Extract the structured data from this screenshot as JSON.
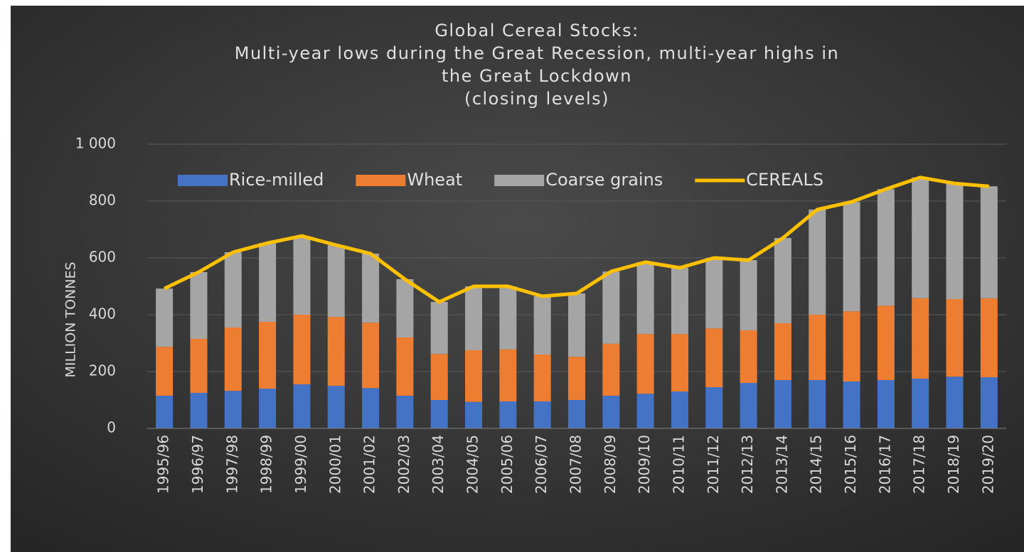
{
  "chart_data": {
    "type": "stacked-bar-line",
    "title": [
      "Global Cereal Stocks:",
      "Multi-year lows during the Great Recession, multi-year highs in",
      "the Great Lockdown",
      "(closing levels)"
    ],
    "y_label": "MILLION TONNES",
    "categories": [
      "1995/96",
      "1996/97",
      "1997/98",
      "1998/99",
      "1999/00",
      "2000/01",
      "2001/02",
      "2002/03",
      "2003/04",
      "2004/05",
      "2005/06",
      "2006/07",
      "2007/08",
      "2008/09",
      "2009/10",
      "2010/11",
      "2011/12",
      "2012/13",
      "2013/14",
      "2014/15",
      "2015/16",
      "2016/17",
      "2017/18",
      "2018/19",
      "2019/20"
    ],
    "series": [
      {
        "name": "Rice-milled",
        "color": "#4472c4",
        "kind": "bar",
        "values": [
          115,
          125,
          132,
          140,
          155,
          150,
          142,
          115,
          100,
          93,
          95,
          95,
          100,
          115,
          122,
          130,
          145,
          160,
          170,
          170,
          165,
          170,
          175,
          182,
          180
        ]
      },
      {
        "name": "Wheat",
        "color": "#ed7d31",
        "kind": "bar",
        "values": [
          172,
          190,
          223,
          235,
          245,
          242,
          230,
          205,
          162,
          182,
          183,
          165,
          152,
          183,
          210,
          202,
          207,
          185,
          200,
          230,
          247,
          262,
          283,
          273,
          278
        ]
      },
      {
        "name": "Coarse grains",
        "color": "#a5a5a5",
        "kind": "bar",
        "values": [
          205,
          235,
          265,
          277,
          277,
          253,
          243,
          205,
          183,
          225,
          222,
          205,
          223,
          254,
          253,
          233,
          248,
          247,
          300,
          370,
          385,
          410,
          425,
          407,
          394
        ]
      },
      {
        "name": "CEREALS",
        "color": "#ffc000",
        "kind": "line",
        "values": [
          492,
          550,
          620,
          652,
          677,
          645,
          615,
          525,
          445,
          500,
          500,
          465,
          475,
          552,
          585,
          565,
          600,
          592,
          670,
          770,
          797,
          842,
          883,
          862,
          852
        ]
      }
    ],
    "ylim": [
      0,
      1000
    ],
    "yticks": [
      0,
      200,
      400,
      600,
      800,
      {
        "value": 1000,
        "label": "1 000"
      }
    ],
    "grid": true,
    "legend": "top"
  }
}
